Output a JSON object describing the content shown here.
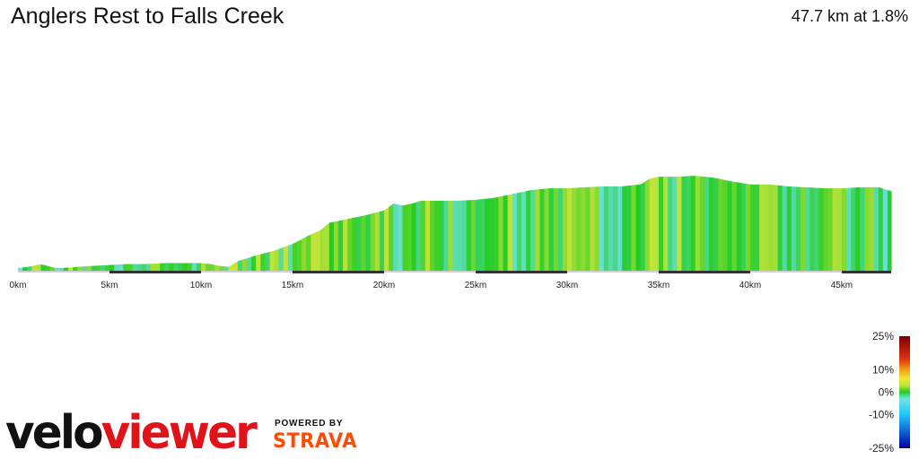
{
  "header": {
    "title": "Anglers Rest to Falls Creek",
    "summary": "47.7 km at 1.8%"
  },
  "branding": {
    "logo": "veloviewer",
    "powered_by": "POWERED BY",
    "strava": "STRAVA",
    "strava_color": "#fc4c02"
  },
  "gradient_legend": {
    "labels": [
      "25%",
      "10%",
      "0%",
      "-10%",
      "-25%"
    ]
  },
  "chart_data": {
    "type": "area",
    "xlabel": "",
    "ylabel": "",
    "xlim": [
      0,
      47.7
    ],
    "x_ticks": [
      0,
      5,
      10,
      15,
      20,
      25,
      30,
      35,
      40,
      45
    ],
    "x_tick_labels": [
      "0km",
      "5km",
      "10km",
      "15km",
      "20km",
      "25km",
      "30km",
      "35km",
      "40km",
      "45km"
    ],
    "elevation_rel": {
      "x_km": [
        0,
        0.6,
        1.2,
        1.6,
        2,
        2.6,
        3.2,
        4,
        5,
        6,
        7,
        8,
        9,
        10,
        10.5,
        11,
        11.5,
        12,
        13,
        14,
        15,
        16,
        16.5,
        17,
        18,
        19,
        20,
        20.5,
        21,
        21.5,
        22,
        23,
        24,
        25,
        26,
        27,
        28,
        29,
        30,
        31,
        32,
        33,
        34,
        34.5,
        35,
        36,
        37,
        38,
        39,
        40,
        41,
        42,
        43,
        44,
        45,
        46,
        47,
        47.7
      ],
      "y": [
        0.03,
        0.04,
        0.07,
        0.05,
        0.03,
        0.03,
        0.04,
        0.05,
        0.06,
        0.07,
        0.07,
        0.08,
        0.08,
        0.08,
        0.07,
        0.05,
        0.04,
        0.1,
        0.16,
        0.21,
        0.28,
        0.38,
        0.42,
        0.5,
        0.54,
        0.58,
        0.63,
        0.7,
        0.68,
        0.7,
        0.73,
        0.73,
        0.73,
        0.74,
        0.76,
        0.8,
        0.84,
        0.86,
        0.86,
        0.87,
        0.88,
        0.88,
        0.9,
        0.96,
        0.98,
        0.98,
        0.99,
        0.97,
        0.93,
        0.9,
        0.9,
        0.88,
        0.87,
        0.86,
        0.86,
        0.87,
        0.87,
        0.83
      ]
    },
    "gradient_scale_pct": [
      -25,
      25
    ],
    "gradient_palette": [
      {
        "pct": -25,
        "color": "#0000a0"
      },
      {
        "pct": -10,
        "color": "#22c8ff"
      },
      {
        "pct": -3,
        "color": "#6fe3e3"
      },
      {
        "pct": 0,
        "color": "#22cc22"
      },
      {
        "pct": 3,
        "color": "#bde33a"
      },
      {
        "pct": 6,
        "color": "#eaea33"
      },
      {
        "pct": 10,
        "color": "#f0a010"
      },
      {
        "pct": 15,
        "color": "#e03010"
      },
      {
        "pct": 25,
        "color": "#7a0000"
      }
    ]
  }
}
